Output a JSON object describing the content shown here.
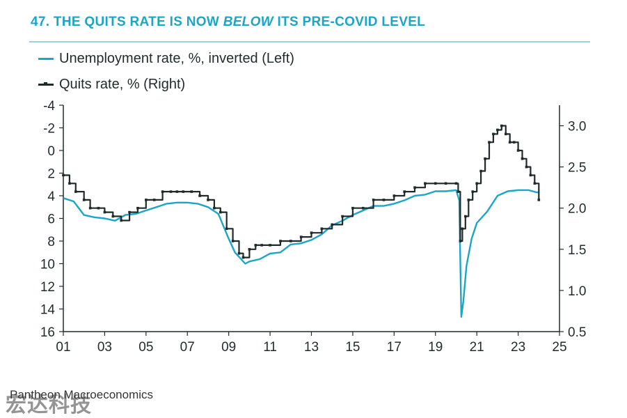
{
  "chart_data": {
    "type": "line",
    "title_prefix": "47.",
    "title_parts": [
      "THE QUITS RATE IS NOW",
      "BELOW",
      "ITS PRE-COVID LEVEL"
    ],
    "series": [
      {
        "name": "Unemployment rate, %, inverted (Left)",
        "axis": "left",
        "color": "#1ba5c6",
        "x": [
          2001.0,
          2001.5,
          2002.0,
          2002.5,
          2003.0,
          2003.5,
          2004.0,
          2004.5,
          2005.0,
          2005.5,
          2006.0,
          2006.5,
          2007.0,
          2007.5,
          2008.0,
          2008.5,
          2009.0,
          2009.3,
          2009.6,
          2009.8,
          2010.0,
          2010.5,
          2011.0,
          2011.5,
          2012.0,
          2012.5,
          2013.0,
          2013.5,
          2014.0,
          2014.5,
          2015.0,
          2015.5,
          2016.0,
          2016.5,
          2017.0,
          2017.5,
          2018.0,
          2018.5,
          2019.0,
          2019.5,
          2020.0,
          2020.15,
          2020.25,
          2020.35,
          2020.5,
          2020.75,
          2021.0,
          2021.5,
          2022.0,
          2022.5,
          2023.0,
          2023.5,
          2023.9,
          2024.0
        ],
        "values": [
          4.2,
          4.5,
          5.7,
          5.9,
          6.0,
          6.2,
          5.7,
          5.6,
          5.3,
          5.0,
          4.7,
          4.6,
          4.6,
          4.7,
          5.0,
          5.6,
          7.8,
          9.0,
          9.6,
          10.0,
          9.8,
          9.6,
          9.1,
          9.0,
          8.3,
          8.2,
          7.9,
          7.4,
          6.6,
          6.2,
          5.7,
          5.3,
          4.9,
          4.9,
          4.7,
          4.4,
          4.0,
          3.9,
          3.6,
          3.6,
          3.5,
          4.4,
          14.7,
          13.3,
          10.2,
          7.8,
          6.4,
          5.4,
          4.0,
          3.6,
          3.5,
          3.5,
          3.7,
          3.7
        ]
      },
      {
        "name": "Quits rate, % (Right)",
        "axis": "right",
        "color": "#1f2b2b",
        "x": [
          2001.0,
          2001.3,
          2001.6,
          2002.0,
          2002.3,
          2002.7,
          2003.0,
          2003.4,
          2003.8,
          2004.2,
          2004.6,
          2005.0,
          2005.4,
          2005.8,
          2006.2,
          2006.5,
          2006.8,
          2007.2,
          2007.6,
          2008.0,
          2008.3,
          2008.6,
          2008.9,
          2009.2,
          2009.5,
          2009.7,
          2010.0,
          2010.3,
          2010.6,
          2011.0,
          2011.5,
          2012.0,
          2012.5,
          2013.0,
          2013.5,
          2014.0,
          2014.5,
          2015.0,
          2015.5,
          2016.0,
          2016.5,
          2017.0,
          2017.5,
          2018.0,
          2018.5,
          2019.0,
          2019.5,
          2020.0,
          2020.1,
          2020.2,
          2020.3,
          2020.45,
          2020.6,
          2020.8,
          2021.0,
          2021.2,
          2021.4,
          2021.6,
          2021.8,
          2022.0,
          2022.2,
          2022.4,
          2022.6,
          2022.8,
          2023.0,
          2023.2,
          2023.4,
          2023.6,
          2023.8,
          2024.0
        ],
        "values": [
          2.4,
          2.3,
          2.2,
          2.1,
          2.0,
          2.0,
          1.95,
          1.9,
          1.85,
          1.95,
          2.0,
          2.1,
          2.1,
          2.2,
          2.2,
          2.2,
          2.2,
          2.2,
          2.15,
          2.1,
          2.0,
          1.95,
          1.75,
          1.6,
          1.45,
          1.4,
          1.5,
          1.55,
          1.55,
          1.55,
          1.6,
          1.6,
          1.65,
          1.7,
          1.75,
          1.8,
          1.9,
          2.0,
          2.0,
          2.1,
          2.1,
          2.15,
          2.2,
          2.25,
          2.3,
          2.3,
          2.3,
          2.3,
          2.2,
          1.6,
          1.75,
          1.9,
          2.1,
          2.2,
          2.3,
          2.45,
          2.6,
          2.8,
          2.9,
          2.95,
          3.0,
          2.9,
          2.8,
          2.8,
          2.7,
          2.6,
          2.5,
          2.4,
          2.3,
          2.1
        ]
      }
    ],
    "x_axis": {
      "range": [
        2001,
        2025
      ],
      "ticks": [
        2001,
        2003,
        2005,
        2007,
        2009,
        2011,
        2013,
        2015,
        2017,
        2019,
        2021,
        2023,
        2025
      ],
      "tick_labels": [
        "01",
        "03",
        "05",
        "07",
        "09",
        "11",
        "13",
        "15",
        "17",
        "19",
        "21",
        "23",
        "25"
      ]
    },
    "left_axis": {
      "range": [
        -4,
        16
      ],
      "inverted": true,
      "ticks": [
        -4,
        -2,
        0,
        2,
        4,
        6,
        8,
        10,
        12,
        14,
        16
      ],
      "tick_labels": [
        "-4",
        "-2",
        "0",
        "2",
        "4",
        "6",
        "8",
        "10",
        "12",
        "14",
        "16"
      ]
    },
    "right_axis": {
      "range": [
        0.5,
        3.25
      ],
      "ticks": [
        0.5,
        1.0,
        1.5,
        2.0,
        2.5,
        3.0
      ],
      "tick_labels": [
        "0.5",
        "1.0",
        "1.5",
        "2.0",
        "2.5",
        "3.0"
      ]
    },
    "grid": false,
    "legend_position": "top-left"
  },
  "source": "Pantheon Macroeconomics",
  "watermark": "宏达科技"
}
